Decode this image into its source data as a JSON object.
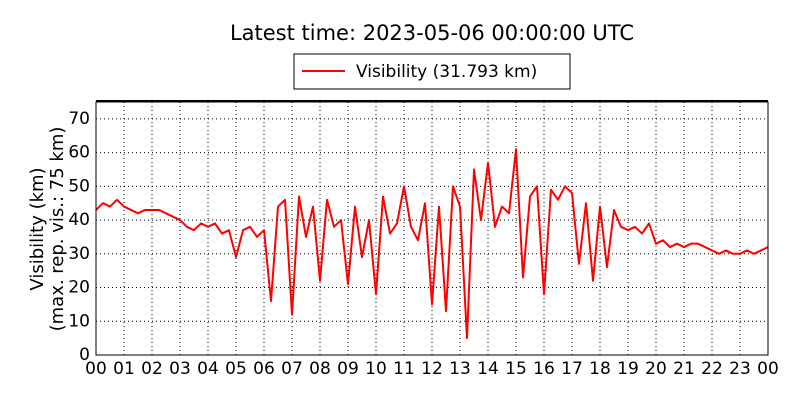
{
  "chart_data": {
    "type": "line",
    "title": "Latest time: 2023-05-06 00:00:00 UTC",
    "ylabel": [
      "Visibility (km)",
      "(max. rep. vis.: 75 km)"
    ],
    "x": [
      0,
      0.25,
      0.5,
      0.75,
      1,
      1.25,
      1.5,
      1.75,
      2,
      2.25,
      2.5,
      2.75,
      3,
      3.25,
      3.5,
      3.75,
      4,
      4.25,
      4.5,
      4.75,
      5,
      5.25,
      5.5,
      5.75,
      6,
      6.25,
      6.5,
      6.75,
      7,
      7.25,
      7.5,
      7.75,
      8,
      8.25,
      8.5,
      8.75,
      9,
      9.25,
      9.5,
      9.75,
      10,
      10.25,
      10.5,
      10.75,
      11,
      11.25,
      11.5,
      11.75,
      12,
      12.25,
      12.5,
      12.75,
      13,
      13.25,
      13.5,
      13.75,
      14,
      14.25,
      14.5,
      14.75,
      15,
      15.25,
      15.5,
      15.75,
      16,
      16.25,
      16.5,
      16.75,
      17,
      17.25,
      17.5,
      17.75,
      18,
      18.25,
      18.5,
      18.75,
      19,
      19.25,
      19.5,
      19.75,
      20,
      20.25,
      20.5,
      20.75,
      21,
      21.25,
      21.5,
      21.75,
      22,
      22.25,
      22.5,
      22.75,
      23,
      23.25,
      23.5,
      23.75,
      24
    ],
    "series": [
      {
        "name": "Visibility (31.793 km)",
        "color": "#ff0000",
        "values": [
          43,
          45,
          44,
          46,
          44,
          43,
          42,
          43,
          43,
          43,
          42,
          41,
          40,
          38,
          37,
          39,
          38,
          39,
          36,
          37,
          29,
          37,
          38,
          35,
          37,
          16,
          44,
          46,
          12,
          47,
          35,
          44,
          22,
          46,
          38,
          40,
          21,
          44,
          29,
          40,
          18,
          47,
          36,
          39,
          50,
          38,
          34,
          45,
          15,
          44,
          13,
          50,
          44,
          5,
          55,
          40,
          57,
          38,
          44,
          42,
          61,
          23,
          47,
          50,
          18,
          49,
          46,
          50,
          48,
          27,
          45,
          22,
          44,
          26,
          43,
          38,
          37,
          38,
          36,
          39,
          33,
          34,
          32,
          33,
          32,
          33,
          33,
          32,
          31,
          30,
          31,
          30,
          30,
          31,
          30,
          31,
          32
        ]
      }
    ],
    "xlim": [
      0,
      24
    ],
    "xticks": [
      {
        "value": 0,
        "label": "00"
      },
      {
        "value": 1,
        "label": "01"
      },
      {
        "value": 2,
        "label": "02"
      },
      {
        "value": 3,
        "label": "03"
      },
      {
        "value": 4,
        "label": "04"
      },
      {
        "value": 5,
        "label": "05"
      },
      {
        "value": 6,
        "label": "06"
      },
      {
        "value": 7,
        "label": "07"
      },
      {
        "value": 8,
        "label": "08"
      },
      {
        "value": 9,
        "label": "09"
      },
      {
        "value": 10,
        "label": "10"
      },
      {
        "value": 11,
        "label": "11"
      },
      {
        "value": 12,
        "label": "12"
      },
      {
        "value": 13,
        "label": "13"
      },
      {
        "value": 14,
        "label": "14"
      },
      {
        "value": 15,
        "label": "15"
      },
      {
        "value": 16,
        "label": "16"
      },
      {
        "value": 17,
        "label": "17"
      },
      {
        "value": 18,
        "label": "18"
      },
      {
        "value": 19,
        "label": "19"
      },
      {
        "value": 20,
        "label": "20"
      },
      {
        "value": 21,
        "label": "21"
      },
      {
        "value": 22,
        "label": "22"
      },
      {
        "value": 23,
        "label": "23"
      },
      {
        "value": 24,
        "label": "00"
      }
    ],
    "ylim": [
      0,
      75
    ],
    "yticks": [
      0,
      10,
      20,
      30,
      40,
      50,
      60,
      70
    ],
    "grid": true
  }
}
